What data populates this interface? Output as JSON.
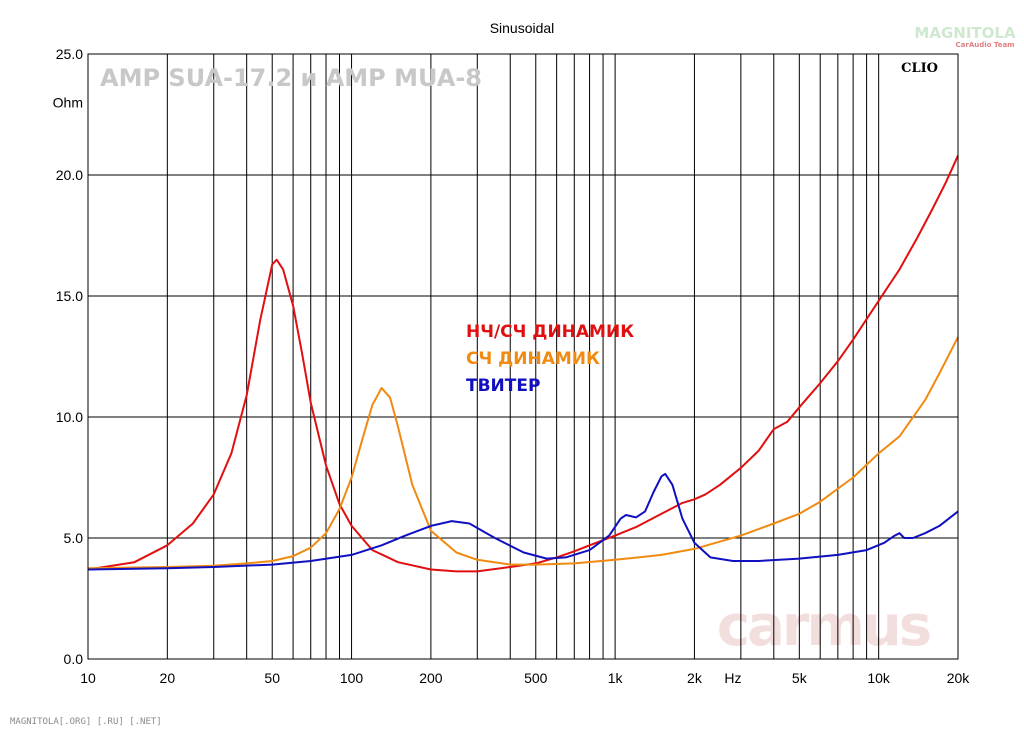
{
  "chart_data": {
    "type": "line",
    "title": "Sinusoidal",
    "x_scale": "log",
    "xlim": [
      10,
      20000
    ],
    "ylim": [
      0,
      25
    ],
    "grid": true,
    "ylabel": "Ohm",
    "xunit_label": "Hz",
    "y_ticks": [
      "0.0",
      "5.0",
      "10.0",
      "15.0",
      "20.0",
      "25.0"
    ],
    "x_ticks": [
      {
        "value": 10,
        "label": "10"
      },
      {
        "value": 20,
        "label": "20"
      },
      {
        "value": 50,
        "label": "50"
      },
      {
        "value": 100,
        "label": "100"
      },
      {
        "value": 200,
        "label": "200"
      },
      {
        "value": 500,
        "label": "500"
      },
      {
        "value": 1000,
        "label": "1k"
      },
      {
        "value": 2000,
        "label": "2k"
      },
      {
        "value": 5000,
        "label": "5k"
      },
      {
        "value": 10000,
        "label": "10k"
      },
      {
        "value": 20000,
        "label": "20k"
      }
    ],
    "overlay_title": "AMP SUA-17.2 и AMP MUA-8",
    "brand": "CLIO",
    "series": [
      {
        "name": "НЧ/СЧ ДИНАМИК",
        "color": "#e01010",
        "points": [
          [
            10,
            3.7
          ],
          [
            15,
            4.0
          ],
          [
            20,
            4.7
          ],
          [
            25,
            5.6
          ],
          [
            30,
            6.8
          ],
          [
            35,
            8.5
          ],
          [
            40,
            10.9
          ],
          [
            45,
            14.0
          ],
          [
            50,
            16.3
          ],
          [
            52,
            16.5
          ],
          [
            55,
            16.1
          ],
          [
            60,
            14.6
          ],
          [
            65,
            12.6
          ],
          [
            70,
            10.6
          ],
          [
            80,
            8.0
          ],
          [
            90,
            6.4
          ],
          [
            100,
            5.5
          ],
          [
            120,
            4.5
          ],
          [
            150,
            4.0
          ],
          [
            200,
            3.7
          ],
          [
            250,
            3.62
          ],
          [
            300,
            3.62
          ],
          [
            400,
            3.8
          ],
          [
            500,
            3.95
          ],
          [
            600,
            4.2
          ],
          [
            700,
            4.45
          ],
          [
            800,
            4.7
          ],
          [
            1000,
            5.1
          ],
          [
            1200,
            5.45
          ],
          [
            1500,
            6.0
          ],
          [
            1800,
            6.45
          ],
          [
            2000,
            6.6
          ],
          [
            2200,
            6.8
          ],
          [
            2500,
            7.2
          ],
          [
            3000,
            7.9
          ],
          [
            3500,
            8.6
          ],
          [
            4000,
            9.5
          ],
          [
            4500,
            9.8
          ],
          [
            5000,
            10.4
          ],
          [
            6000,
            11.4
          ],
          [
            7000,
            12.3
          ],
          [
            8000,
            13.2
          ],
          [
            10000,
            14.8
          ],
          [
            12000,
            16.1
          ],
          [
            14000,
            17.4
          ],
          [
            16000,
            18.6
          ],
          [
            18000,
            19.7
          ],
          [
            20000,
            20.8
          ]
        ]
      },
      {
        "name": "СЧ ДИНАМИК",
        "color": "#f08a10",
        "points": [
          [
            10,
            3.75
          ],
          [
            20,
            3.8
          ],
          [
            30,
            3.85
          ],
          [
            40,
            3.95
          ],
          [
            50,
            4.05
          ],
          [
            60,
            4.25
          ],
          [
            70,
            4.6
          ],
          [
            80,
            5.2
          ],
          [
            90,
            6.2
          ],
          [
            100,
            7.5
          ],
          [
            110,
            9.1
          ],
          [
            120,
            10.5
          ],
          [
            130,
            11.2
          ],
          [
            140,
            10.8
          ],
          [
            150,
            9.6
          ],
          [
            170,
            7.2
          ],
          [
            200,
            5.3
          ],
          [
            250,
            4.4
          ],
          [
            300,
            4.1
          ],
          [
            400,
            3.9
          ],
          [
            500,
            3.9
          ],
          [
            700,
            3.95
          ],
          [
            1000,
            4.1
          ],
          [
            1500,
            4.3
          ],
          [
            2000,
            4.55
          ],
          [
            3000,
            5.1
          ],
          [
            4000,
            5.6
          ],
          [
            5000,
            6.0
          ],
          [
            6000,
            6.5
          ],
          [
            8000,
            7.5
          ],
          [
            10000,
            8.5
          ],
          [
            12000,
            9.2
          ],
          [
            15000,
            10.7
          ],
          [
            17000,
            11.8
          ],
          [
            20000,
            13.3
          ]
        ]
      },
      {
        "name": "ТВИТЕР",
        "color": "#1010c0",
        "points": [
          [
            10,
            3.7
          ],
          [
            20,
            3.75
          ],
          [
            30,
            3.8
          ],
          [
            50,
            3.9
          ],
          [
            70,
            4.05
          ],
          [
            100,
            4.3
          ],
          [
            130,
            4.7
          ],
          [
            160,
            5.1
          ],
          [
            200,
            5.5
          ],
          [
            240,
            5.7
          ],
          [
            280,
            5.6
          ],
          [
            350,
            5.0
          ],
          [
            450,
            4.4
          ],
          [
            550,
            4.15
          ],
          [
            650,
            4.2
          ],
          [
            800,
            4.5
          ],
          [
            950,
            5.1
          ],
          [
            1050,
            5.8
          ],
          [
            1100,
            5.95
          ],
          [
            1200,
            5.85
          ],
          [
            1300,
            6.1
          ],
          [
            1400,
            6.9
          ],
          [
            1500,
            7.55
          ],
          [
            1550,
            7.65
          ],
          [
            1650,
            7.2
          ],
          [
            1800,
            5.8
          ],
          [
            2000,
            4.8
          ],
          [
            2300,
            4.2
          ],
          [
            2800,
            4.05
          ],
          [
            3500,
            4.05
          ],
          [
            5000,
            4.15
          ],
          [
            7000,
            4.3
          ],
          [
            9000,
            4.5
          ],
          [
            10500,
            4.8
          ],
          [
            11500,
            5.1
          ],
          [
            12000,
            5.2
          ],
          [
            12500,
            5.0
          ],
          [
            13500,
            5.0
          ],
          [
            15000,
            5.2
          ],
          [
            17000,
            5.5
          ],
          [
            20000,
            6.1
          ]
        ]
      }
    ],
    "footer": "MAGNITOLA[.ORG] [.RU] [.NET]",
    "watermark": "carmus",
    "logo_main": "MAGNITOLA",
    "logo_sub": "CarAudio Team"
  }
}
